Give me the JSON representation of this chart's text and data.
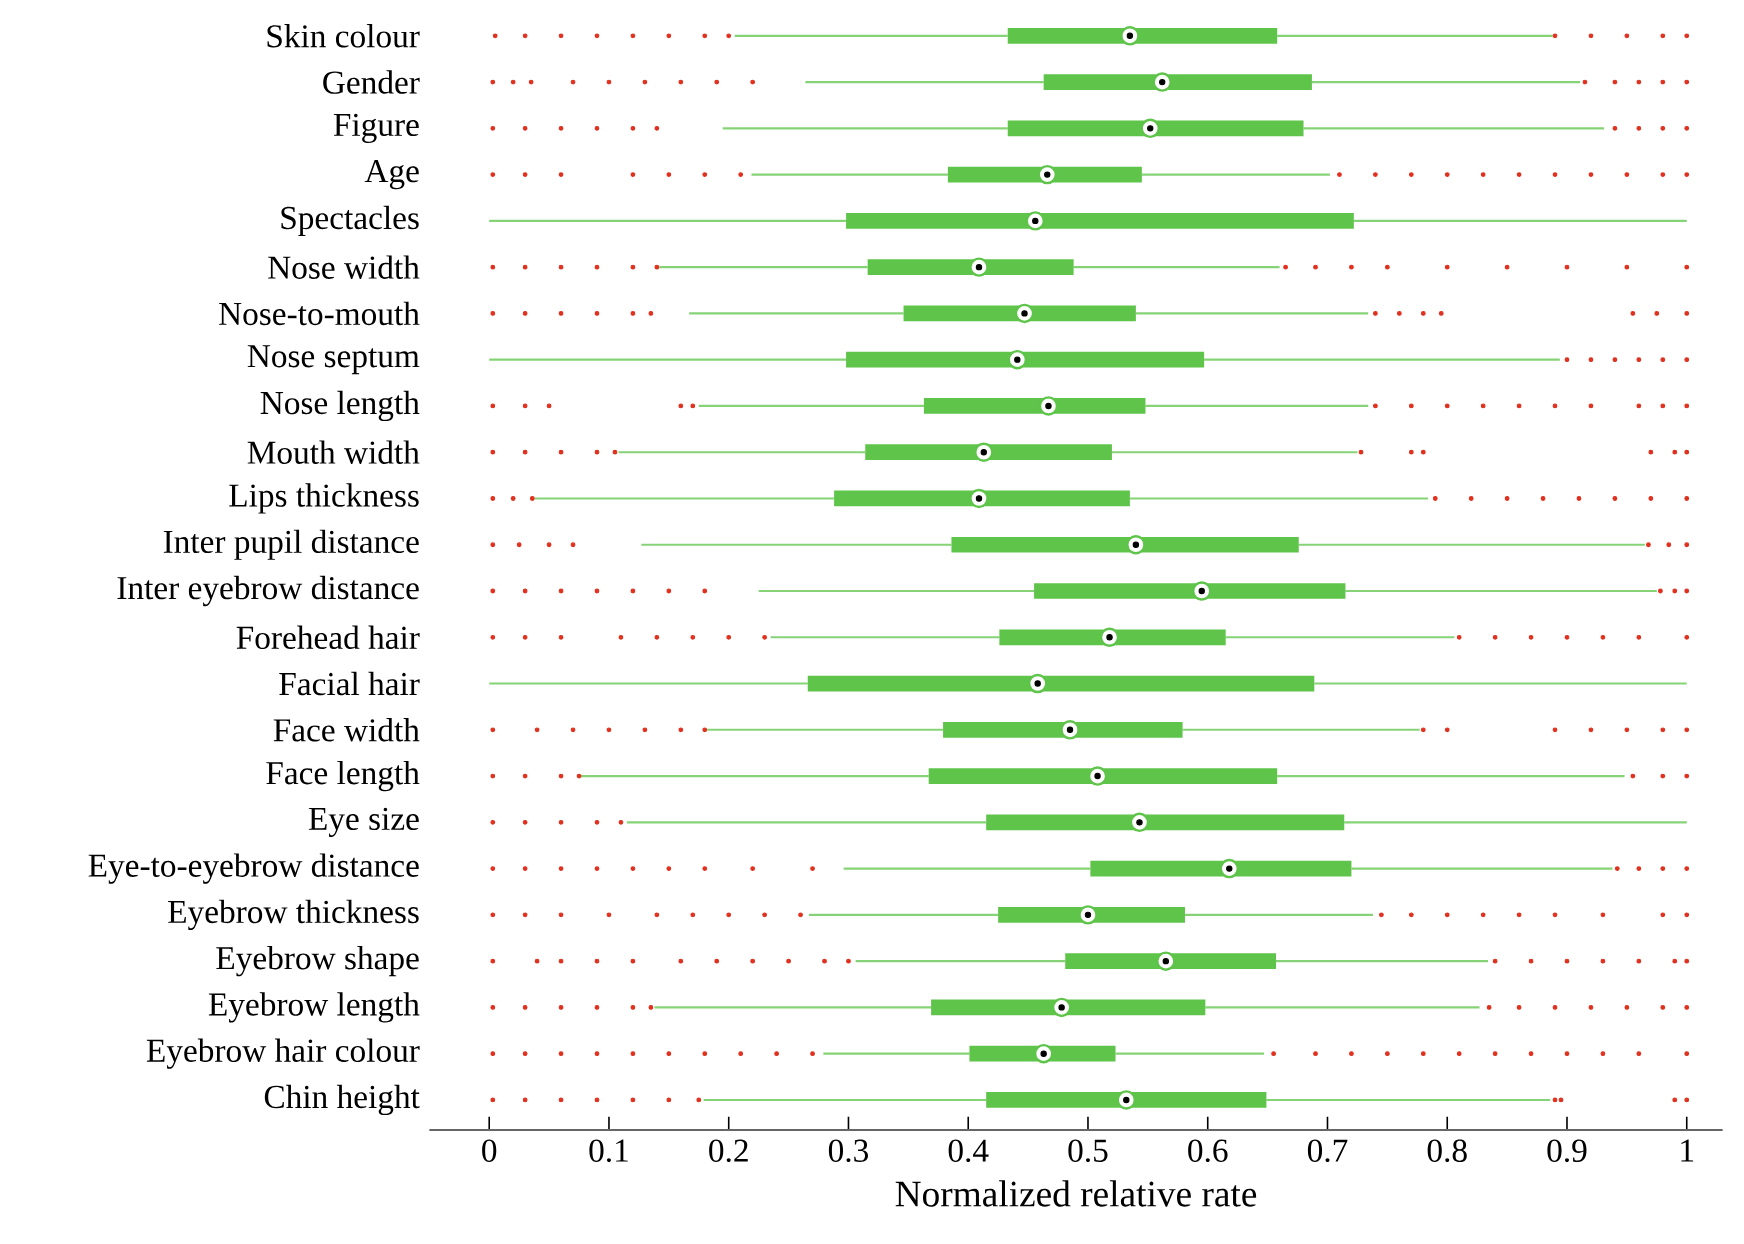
{
  "chart_data": {
    "type": "box",
    "orientation": "horizontal",
    "xlabel": "Normalized relative rate",
    "categories": [
      "Skin colour",
      "Gender",
      "Figure",
      "Age",
      "Spectacles",
      "Nose width",
      "Nose-to-mouth",
      "Nose septum",
      "Nose length",
      "Mouth width",
      "Lips thickness",
      "Inter pupil distance",
      "Inter eyebrow distance",
      "Forehead hair",
      "Facial hair",
      "Face width",
      "Face length",
      "Eye size",
      "Eye-to-eyebrow distance",
      "Eyebrow thickness",
      "Eyebrow shape",
      "Eyebrow length",
      "Eyebrow hair colour",
      "Chin height"
    ],
    "xlim": [
      -0.05,
      1.03
    ],
    "xticks": [
      0,
      0.1,
      0.2,
      0.3,
      0.4,
      0.5,
      0.6,
      0.7,
      0.8,
      0.9,
      1
    ],
    "series": [
      {
        "color": "#5ec44a",
        "boxes": [
          {
            "low": 0.205,
            "q1": 0.433,
            "median": 0.535,
            "q3": 0.658,
            "high": 0.888,
            "outliers": [
              0.005,
              0.03,
              0.06,
              0.09,
              0.12,
              0.15,
              0.18,
              0.2,
              0.89,
              0.92,
              0.95,
              0.98,
              1
            ]
          },
          {
            "low": 0.264,
            "q1": 0.463,
            "median": 0.562,
            "q3": 0.687,
            "high": 0.911,
            "outliers": [
              0.003,
              0.02,
              0.035,
              0.07,
              0.1,
              0.13,
              0.16,
              0.19,
              0.22,
              0.915,
              0.94,
              0.96,
              0.98,
              1
            ]
          },
          {
            "low": 0.195,
            "q1": 0.433,
            "median": 0.552,
            "q3": 0.68,
            "high": 0.931,
            "outliers": [
              0.003,
              0.03,
              0.06,
              0.09,
              0.12,
              0.14,
              0.94,
              0.96,
              0.98,
              1
            ]
          },
          {
            "low": 0.219,
            "q1": 0.383,
            "median": 0.466,
            "q3": 0.545,
            "high": 0.702,
            "outliers": [
              0.003,
              0.03,
              0.06,
              0.12,
              0.15,
              0.18,
              0.21,
              0.71,
              0.74,
              0.77,
              0.8,
              0.83,
              0.86,
              0.89,
              0.92,
              0.95,
              0.98,
              1
            ]
          },
          {
            "low": 0,
            "q1": 0.298,
            "median": 0.456,
            "q3": 0.722,
            "high": 1
          },
          {
            "low": 0.142,
            "q1": 0.316,
            "median": 0.409,
            "q3": 0.488,
            "high": 0.66,
            "outliers": [
              0.003,
              0.03,
              0.06,
              0.09,
              0.12,
              0.14,
              0.665,
              0.69,
              0.72,
              0.75,
              0.8,
              0.85,
              0.9,
              0.95,
              1
            ]
          },
          {
            "low": 0.167,
            "q1": 0.346,
            "median": 0.447,
            "q3": 0.54,
            "high": 0.734,
            "outliers": [
              0.003,
              0.03,
              0.06,
              0.09,
              0.12,
              0.135,
              0.74,
              0.76,
              0.78,
              0.795,
              0.955,
              0.975,
              1
            ]
          },
          {
            "low": 0,
            "q1": 0.298,
            "median": 0.441,
            "q3": 0.597,
            "high": 0.894,
            "outliers": [
              0.9,
              0.92,
              0.94,
              0.96,
              0.98,
              1
            ]
          },
          {
            "low": 0.175,
            "q1": 0.363,
            "median": 0.467,
            "q3": 0.548,
            "high": 0.734,
            "outliers": [
              0.003,
              0.03,
              0.05,
              0.16,
              0.17,
              0.74,
              0.77,
              0.8,
              0.83,
              0.86,
              0.89,
              0.92,
              0.96,
              0.98,
              1
            ]
          },
          {
            "low": 0.108,
            "q1": 0.314,
            "median": 0.413,
            "q3": 0.52,
            "high": 0.725,
            "outliers": [
              0.003,
              0.03,
              0.06,
              0.09,
              0.105,
              0.728,
              0.77,
              0.78,
              0.97,
              0.99,
              1
            ]
          },
          {
            "low": 0.038,
            "q1": 0.288,
            "median": 0.409,
            "q3": 0.535,
            "high": 0.784,
            "outliers": [
              0.003,
              0.02,
              0.036,
              0.79,
              0.82,
              0.85,
              0.88,
              0.91,
              0.94,
              0.97,
              1
            ]
          },
          {
            "low": 0.127,
            "q1": 0.386,
            "median": 0.54,
            "q3": 0.676,
            "high": 0.965,
            "outliers": [
              0.003,
              0.025,
              0.05,
              0.07,
              0.968,
              0.985,
              1
            ]
          },
          {
            "low": 0.225,
            "q1": 0.455,
            "median": 0.595,
            "q3": 0.715,
            "high": 0.975,
            "outliers": [
              0.003,
              0.03,
              0.06,
              0.09,
              0.12,
              0.15,
              0.18,
              0.978,
              0.99,
              1
            ]
          },
          {
            "low": 0.235,
            "q1": 0.426,
            "median": 0.518,
            "q3": 0.615,
            "high": 0.806,
            "outliers": [
              0.003,
              0.03,
              0.06,
              0.11,
              0.14,
              0.17,
              0.2,
              0.23,
              0.81,
              0.84,
              0.87,
              0.9,
              0.93,
              0.96,
              1
            ]
          },
          {
            "low": 0,
            "q1": 0.266,
            "median": 0.458,
            "q3": 0.689,
            "high": 1
          },
          {
            "low": 0.182,
            "q1": 0.379,
            "median": 0.485,
            "q3": 0.579,
            "high": 0.777,
            "outliers": [
              0.003,
              0.04,
              0.07,
              0.1,
              0.13,
              0.16,
              0.18,
              0.78,
              0.8,
              0.89,
              0.92,
              0.95,
              0.98,
              1
            ]
          },
          {
            "low": 0.076,
            "q1": 0.367,
            "median": 0.508,
            "q3": 0.658,
            "high": 0.948,
            "outliers": [
              0.003,
              0.03,
              0.06,
              0.075,
              0.955,
              0.98,
              1
            ]
          },
          {
            "low": 0.115,
            "q1": 0.415,
            "median": 0.543,
            "q3": 0.714,
            "high": 1,
            "outliers": [
              0.003,
              0.03,
              0.06,
              0.09,
              0.11
            ]
          },
          {
            "low": 0.296,
            "q1": 0.502,
            "median": 0.618,
            "q3": 0.72,
            "high": 0.938,
            "outliers": [
              0.003,
              0.03,
              0.06,
              0.09,
              0.12,
              0.15,
              0.18,
              0.22,
              0.27,
              0.942,
              0.96,
              0.98,
              1
            ]
          },
          {
            "low": 0.267,
            "q1": 0.425,
            "median": 0.5,
            "q3": 0.581,
            "high": 0.738,
            "outliers": [
              0.003,
              0.03,
              0.06,
              0.1,
              0.14,
              0.17,
              0.2,
              0.23,
              0.26,
              0.745,
              0.77,
              0.8,
              0.83,
              0.86,
              0.89,
              0.93,
              0.98,
              1
            ]
          },
          {
            "low": 0.306,
            "q1": 0.481,
            "median": 0.565,
            "q3": 0.657,
            "high": 0.834,
            "outliers": [
              0.003,
              0.04,
              0.06,
              0.09,
              0.12,
              0.16,
              0.19,
              0.22,
              0.25,
              0.28,
              0.3,
              0.84,
              0.87,
              0.9,
              0.93,
              0.96,
              0.99,
              1
            ]
          },
          {
            "low": 0.138,
            "q1": 0.369,
            "median": 0.478,
            "q3": 0.598,
            "high": 0.827,
            "outliers": [
              0.003,
              0.03,
              0.06,
              0.09,
              0.12,
              0.135,
              0.835,
              0.86,
              0.89,
              0.92,
              0.95,
              0.98,
              1
            ]
          },
          {
            "low": 0.279,
            "q1": 0.401,
            "median": 0.463,
            "q3": 0.523,
            "high": 0.647,
            "outliers": [
              0.003,
              0.03,
              0.06,
              0.09,
              0.12,
              0.15,
              0.18,
              0.21,
              0.24,
              0.27,
              0.655,
              0.69,
              0.72,
              0.75,
              0.78,
              0.81,
              0.84,
              0.87,
              0.9,
              0.93,
              0.96,
              1
            ]
          },
          {
            "low": 0.179,
            "q1": 0.415,
            "median": 0.532,
            "q3": 0.649,
            "high": 0.886,
            "outliers": [
              0.003,
              0.03,
              0.06,
              0.09,
              0.12,
              0.15,
              0.175,
              0.89,
              0.895,
              0.99,
              1
            ]
          }
        ]
      }
    ]
  }
}
